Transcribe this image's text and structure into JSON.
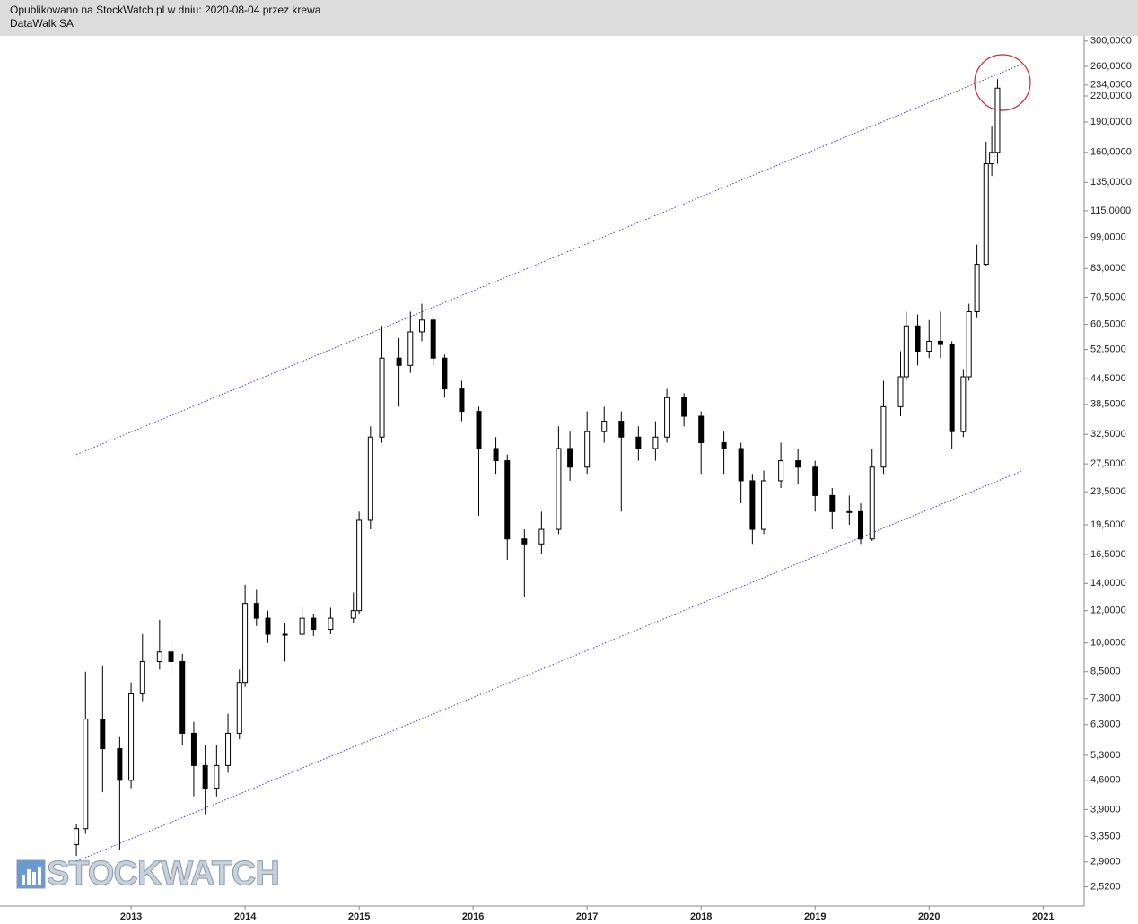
{
  "header": {
    "published": "Opublikowano na StockWatch.pl w dniu: 2020-08-04 przez krewa",
    "instrument": "DataWalk SA"
  },
  "watermark": "STOCKWATCH",
  "chart_data": {
    "type": "candlestick",
    "log_y": true,
    "body_up_color": "#ffffff",
    "body_down_color": "#000000",
    "trendline_color": "#3a3aff",
    "highlight_color": "#e02020",
    "xlim": [
      2011.85,
      2021.36
    ],
    "xticks": [
      2013,
      2014,
      2015,
      2016,
      2017,
      2018,
      2019,
      2020,
      2021
    ],
    "ylim": [
      2.26,
      309
    ],
    "yticks": [
      {
        "value": 300,
        "label": "300,0000"
      },
      {
        "value": 260,
        "label": "260,0000"
      },
      {
        "value": 234,
        "label": "234,0000"
      },
      {
        "value": 220,
        "label": "220,0000"
      },
      {
        "value": 190,
        "label": "190,0000"
      },
      {
        "value": 160,
        "label": "160,0000"
      },
      {
        "value": 135,
        "label": "135,0000"
      },
      {
        "value": 115,
        "label": "115,0000"
      },
      {
        "value": 99,
        "label": "99,0000"
      },
      {
        "value": 83,
        "label": "83,0000"
      },
      {
        "value": 70.5,
        "label": "70,5000"
      },
      {
        "value": 60.5,
        "label": "60,5000"
      },
      {
        "value": 52.5,
        "label": "52,5000"
      },
      {
        "value": 44.5,
        "label": "44,5000"
      },
      {
        "value": 38.5,
        "label": "38,5000"
      },
      {
        "value": 32.5,
        "label": "32,5000"
      },
      {
        "value": 27.5,
        "label": "27,5000"
      },
      {
        "value": 23.5,
        "label": "23,5000"
      },
      {
        "value": 19.5,
        "label": "19,5000"
      },
      {
        "value": 16.5,
        "label": "16,5000"
      },
      {
        "value": 14,
        "label": "14,0000"
      },
      {
        "value": 12,
        "label": "12,0000"
      },
      {
        "value": 10,
        "label": "10,0000"
      },
      {
        "value": 8.5,
        "label": "8,5000"
      },
      {
        "value": 7.3,
        "label": "7,3000"
      },
      {
        "value": 6.3,
        "label": "6,3000"
      },
      {
        "value": 5.3,
        "label": "5,3000"
      },
      {
        "value": 4.6,
        "label": "4,6000"
      },
      {
        "value": 3.9,
        "label": "3,9000"
      },
      {
        "value": 3.35,
        "label": "3,3500"
      },
      {
        "value": 2.9,
        "label": "2,9000"
      },
      {
        "value": 2.52,
        "label": "2,5200"
      }
    ],
    "x": [
      2012.52,
      2012.6,
      2012.75,
      2012.9,
      2013.0,
      2013.1,
      2013.25,
      2013.35,
      2013.45,
      2013.55,
      2013.65,
      2013.75,
      2013.85,
      2013.95,
      2014.0,
      2014.1,
      2014.2,
      2014.35,
      2014.5,
      2014.6,
      2014.75,
      2014.95,
      2015.0,
      2015.1,
      2015.2,
      2015.35,
      2015.45,
      2015.55,
      2015.65,
      2015.75,
      2015.9,
      2016.05,
      2016.2,
      2016.3,
      2016.45,
      2016.6,
      2016.75,
      2016.85,
      2017.0,
      2017.15,
      2017.3,
      2017.45,
      2017.6,
      2017.7,
      2017.85,
      2018.0,
      2018.2,
      2018.35,
      2018.45,
      2018.55,
      2018.7,
      2018.85,
      2019.0,
      2019.15,
      2019.3,
      2019.4,
      2019.5,
      2019.6,
      2019.75,
      2019.8,
      2019.9,
      2020.0,
      2020.1,
      2020.2,
      2020.3,
      2020.35,
      2020.42,
      2020.5,
      2020.55,
      2020.6
    ],
    "open": [
      3.2,
      3.5,
      6.5,
      5.5,
      4.6,
      7.5,
      9.0,
      9.5,
      9.0,
      6.0,
      5.0,
      4.4,
      5.0,
      6.0,
      8.0,
      12.5,
      11.5,
      10.5,
      10.5,
      11.5,
      10.8,
      11.5,
      12.0,
      20,
      32,
      50,
      48,
      58,
      62,
      50,
      42,
      37,
      30,
      28,
      18,
      17.5,
      19,
      30,
      27,
      33,
      35,
      32,
      30,
      32,
      40,
      36,
      31,
      30,
      25,
      19,
      25,
      28,
      27,
      23,
      21,
      21,
      18,
      27,
      38,
      45,
      60,
      52,
      55,
      54,
      33,
      45,
      65,
      85,
      150,
      160
    ],
    "high": [
      3.6,
      8.5,
      8.8,
      5.9,
      8.0,
      10.5,
      11.4,
      10.2,
      9.4,
      6.4,
      5.6,
      5.6,
      6.7,
      8.6,
      13.9,
      13.5,
      12.0,
      11.2,
      12.2,
      11.8,
      12.2,
      13.3,
      21,
      34,
      60,
      56,
      65,
      68,
      63,
      51,
      44,
      38,
      32,
      29,
      19,
      21,
      34,
      33,
      37,
      38,
      37,
      34,
      35,
      42,
      41,
      37,
      33,
      31,
      26,
      26.5,
      31,
      30,
      28,
      24,
      23,
      22,
      30,
      44,
      52,
      65,
      64,
      62,
      65,
      55,
      47,
      68,
      95,
      170,
      185,
      242
    ],
    "low": [
      3.0,
      3.4,
      4.3,
      3.1,
      4.4,
      7.2,
      8.6,
      8.4,
      5.6,
      4.2,
      3.8,
      4.2,
      4.8,
      5.8,
      7.8,
      11.0,
      10.0,
      9.0,
      10.2,
      10.4,
      10.5,
      11.2,
      11.8,
      19,
      31,
      38,
      46,
      55,
      48,
      40,
      35,
      20.5,
      26,
      16,
      13,
      16.5,
      18.5,
      25,
      26,
      31,
      21,
      28,
      28,
      31,
      34,
      26,
      26,
      22,
      17.5,
      18.5,
      24,
      24.5,
      21,
      19,
      19.5,
      17.5,
      17.8,
      26,
      36,
      44,
      48,
      50,
      50,
      30,
      32,
      44,
      63,
      84,
      140,
      150
    ],
    "close": [
      3.5,
      6.5,
      5.5,
      4.6,
      7.5,
      9.0,
      9.5,
      9.0,
      6.0,
      5.0,
      4.4,
      5.0,
      6.0,
      8.0,
      12.5,
      11.5,
      10.5,
      10.5,
      11.5,
      10.8,
      11.5,
      12.0,
      20,
      32,
      50,
      48,
      58,
      62,
      50,
      42,
      37,
      30,
      28,
      18,
      17.5,
      19,
      30,
      27,
      33,
      35,
      32,
      30,
      32,
      40,
      36,
      31,
      30,
      25,
      19,
      25,
      28,
      27,
      23,
      21,
      21,
      18,
      27,
      38,
      45,
      60,
      52,
      55,
      54,
      33,
      45,
      65,
      85,
      150,
      160,
      230
    ],
    "trendlines": [
      {
        "x": [
          2012.52,
          2020.81
        ],
        "y": [
          29.0,
          263
        ]
      },
      {
        "x": [
          2012.52,
          2020.81
        ],
        "y": [
          2.91,
          26.4
        ]
      }
    ]
  }
}
